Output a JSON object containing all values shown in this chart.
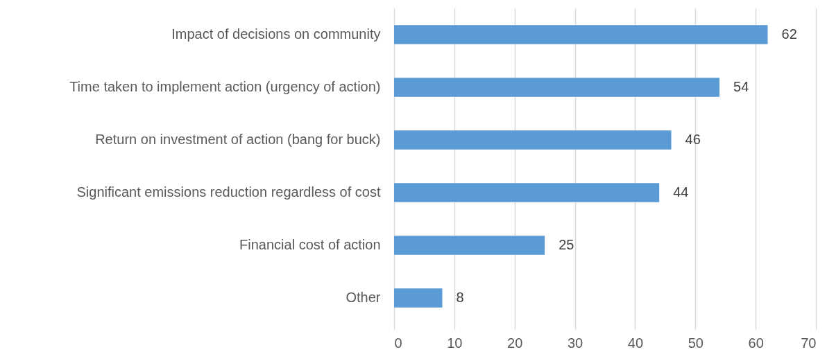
{
  "chart_data": {
    "type": "bar",
    "orientation": "horizontal",
    "categories": [
      "Impact of decisions on community",
      "Time taken to implement action (urgency of action)",
      "Return on investment of action (bang for buck)",
      "Significant emissions reduction regardless of cost",
      "Financial cost of action",
      "Other"
    ],
    "values": [
      62,
      54,
      46,
      44,
      25,
      8
    ],
    "color": "#5b9bd5",
    "xlim": [
      0,
      70
    ],
    "xticks": [
      0,
      10,
      20,
      30,
      40,
      50,
      60,
      70
    ],
    "grid": "x",
    "data_labels": true
  }
}
